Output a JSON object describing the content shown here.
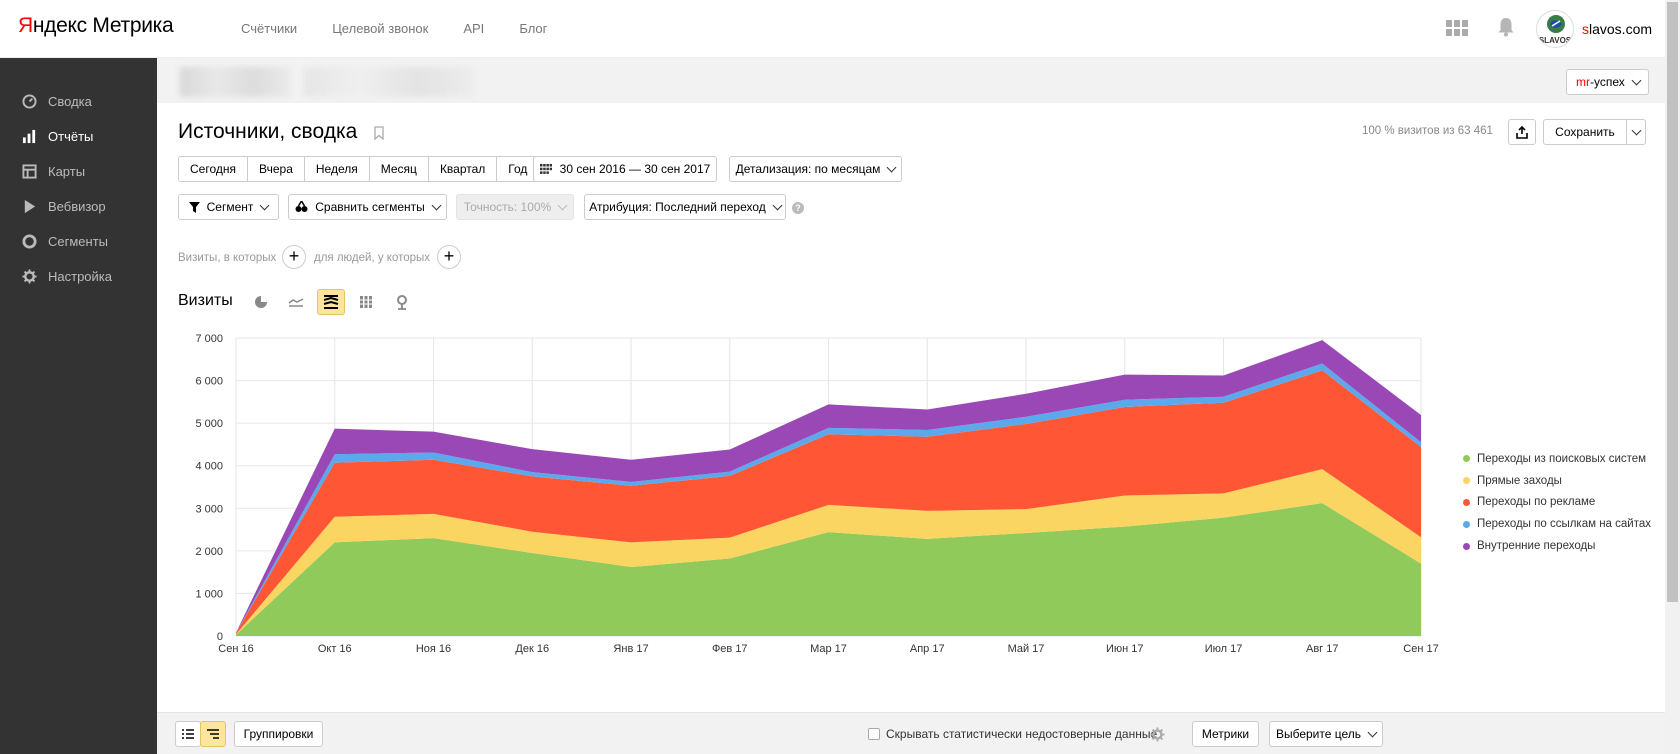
{
  "header": {
    "logo_brand_first": "Я",
    "logo_brand_rest": "ндекс",
    "logo_product": "Метрика",
    "nav": [
      "Счётчики",
      "Целевой звонок",
      "API",
      "Блог"
    ],
    "avatar_caption": "SLAVOS",
    "user_first": "s",
    "user_rest": "lavos.com"
  },
  "sidebar": {
    "items": [
      {
        "label": "Сводка",
        "icon": "gauge-icon"
      },
      {
        "label": "Отчёты",
        "icon": "bar-chart-icon"
      },
      {
        "label": "Карты",
        "icon": "map-icon"
      },
      {
        "label": "Вебвизор",
        "icon": "play-icon"
      },
      {
        "label": "Сегменты",
        "icon": "segments-icon"
      },
      {
        "label": "Настройка",
        "icon": "gear-icon"
      }
    ],
    "active_index": 1
  },
  "counter": {
    "prefix": "mr",
    "rest": "-успех"
  },
  "report": {
    "title": "Источники, сводка",
    "visits_info": "100 % визитов из 63 461",
    "save_label": "Сохранить"
  },
  "period": {
    "options": [
      "Сегодня",
      "Вчера",
      "Неделя",
      "Месяц",
      "Квартал",
      "Год"
    ],
    "range": "30 сен 2016 — 30 сен 2017",
    "detail": "Детализация: по месяцам"
  },
  "toolbar": {
    "segment": "Сегмент",
    "compare": "Сравнить сегменты",
    "accuracy": "Точность: 100%",
    "attribution": "Атрибуция: Последний переход"
  },
  "filters": {
    "visits_where": "Визиты, в которых",
    "people_where": "для людей, у которых"
  },
  "viz": {
    "label": "Визиты",
    "icons": [
      "pie-icon",
      "line-icon",
      "area-icon",
      "bars-icon",
      "map-pin-icon"
    ],
    "active_index": 2
  },
  "colors": {
    "search": "#8fca5a",
    "direct": "#fbd562",
    "ads": "#ff5735",
    "links": "#5ba9ec",
    "internal": "#9b48b7"
  },
  "chart_data": {
    "type": "area",
    "stacked": true,
    "x": [
      "Сен 16",
      "Окт 16",
      "Ноя 16",
      "Дек 16",
      "Янв 17",
      "Фев 17",
      "Мар 17",
      "Апр 17",
      "Май 17",
      "Июн 17",
      "Июл 17",
      "Авг 17",
      "Сен 17"
    ],
    "yticks": [
      "0",
      "1 000",
      "2 000",
      "3 000",
      "4 000",
      "5 000",
      "6 000",
      "7 000"
    ],
    "ylim": [
      0,
      7000
    ],
    "grid": true,
    "legend_position": "right",
    "series": [
      {
        "name": "Переходы из поисковых систем",
        "color": "#8fca5a",
        "values": [
          30,
          2200,
          2300,
          1950,
          1620,
          1820,
          2440,
          2280,
          2420,
          2570,
          2780,
          3120,
          1700
        ]
      },
      {
        "name": "Прямые заходы",
        "color": "#fbd562",
        "values": [
          10,
          600,
          570,
          500,
          580,
          490,
          640,
          660,
          560,
          730,
          570,
          800,
          620
        ]
      },
      {
        "name": "Переходы по рекламе",
        "color": "#ff5735",
        "values": [
          30,
          1270,
          1270,
          1300,
          1330,
          1450,
          1660,
          1740,
          2000,
          2080,
          2130,
          2320,
          2120
        ]
      },
      {
        "name": "Переходы по ссылкам на сайтах",
        "color": "#5ba9ec",
        "values": [
          5,
          200,
          170,
          100,
          90,
          100,
          150,
          160,
          170,
          170,
          140,
          160,
          110
        ]
      },
      {
        "name": "Внутренние переходы",
        "color": "#9b48b7",
        "values": [
          5,
          600,
          490,
          540,
          520,
          520,
          550,
          480,
          540,
          590,
          500,
          550,
          640
        ]
      }
    ]
  },
  "bottom": {
    "groupings": "Группировки",
    "hide_unreliable": "Скрывать статистически недостоверные данные",
    "metrics": "Метрики",
    "goal": "Выберите цель"
  }
}
